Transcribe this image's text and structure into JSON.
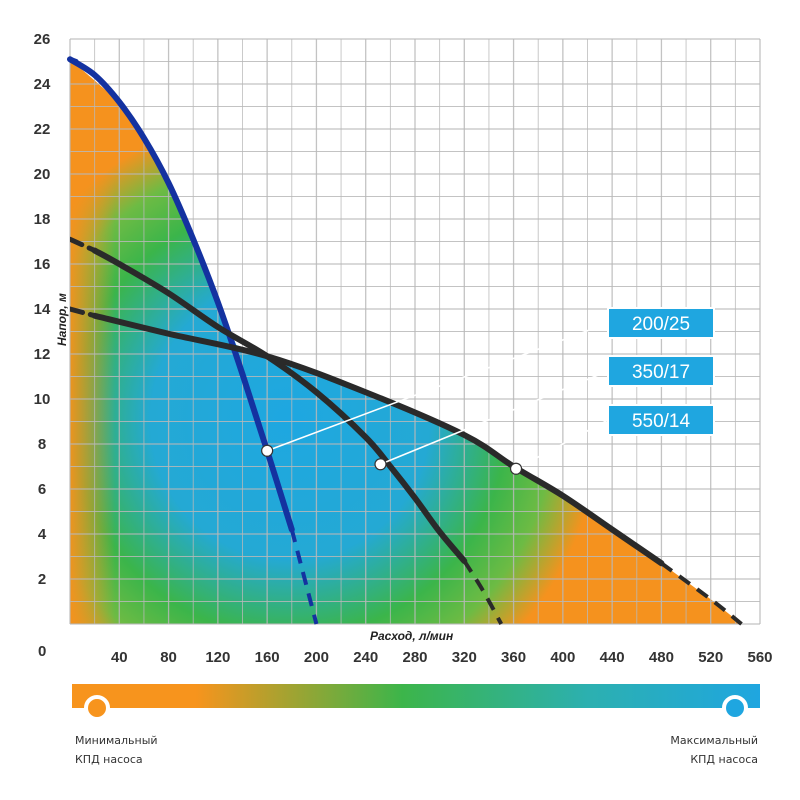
{
  "chart_data": {
    "type": "line",
    "xlabel": "Расход, л/мин",
    "ylabel": "Напор, м",
    "xlim": [
      0,
      560
    ],
    "ylim": [
      0,
      26
    ],
    "x_ticks": [
      40,
      80,
      120,
      160,
      200,
      240,
      280,
      320,
      360,
      400,
      440,
      480,
      520,
      560
    ],
    "y_ticks": [
      2,
      4,
      6,
      8,
      10,
      12,
      14,
      16,
      18,
      20,
      22,
      24,
      26
    ],
    "origin_label": "0",
    "grid": true,
    "background": "efficiency gradient: orange at axes and outer edge, green in between, blue in the central region",
    "series": [
      {
        "name": "200/25",
        "color": "#1432a0",
        "solid": [
          [
            0,
            25.1
          ],
          [
            20,
            24.4
          ],
          [
            40,
            23.2
          ],
          [
            60,
            21.6
          ],
          [
            80,
            19.6
          ],
          [
            100,
            17.1
          ],
          [
            120,
            14.3
          ],
          [
            140,
            11.1
          ],
          [
            160,
            7.7
          ],
          [
            180,
            4.2
          ]
        ],
        "dashed": [
          [
            0,
            25.1
          ],
          [
            5,
            25.0
          ]
        ],
        "dashed_end": [
          [
            180,
            4.2
          ],
          [
            200,
            0
          ]
        ],
        "marker": [
          160,
          7.7
        ]
      },
      {
        "name": "350/17",
        "color": "#2a2a2a",
        "solid": [
          [
            20,
            16.6
          ],
          [
            40,
            16.0
          ],
          [
            80,
            14.7
          ],
          [
            120,
            13.2
          ],
          [
            160,
            11.9
          ],
          [
            200,
            10.3
          ],
          [
            240,
            8.3
          ],
          [
            260,
            7.0
          ],
          [
            280,
            5.6
          ],
          [
            300,
            4.1
          ],
          [
            320,
            2.8
          ]
        ],
        "dashed": [
          [
            0,
            17.1
          ],
          [
            20,
            16.6
          ]
        ],
        "dashed_end": [
          [
            320,
            2.8
          ],
          [
            335,
            1.5
          ],
          [
            350,
            0
          ]
        ],
        "marker": [
          252,
          7.1
        ]
      },
      {
        "name": "550/14",
        "color": "#2a2a2a",
        "solid": [
          [
            20,
            13.7
          ],
          [
            80,
            12.9
          ],
          [
            160,
            11.9
          ],
          [
            240,
            10.3
          ],
          [
            320,
            8.4
          ],
          [
            360,
            7.0
          ],
          [
            400,
            5.7
          ],
          [
            440,
            4.2
          ],
          [
            480,
            2.7
          ]
        ],
        "dashed": [
          [
            0,
            14.0
          ],
          [
            20,
            13.7
          ]
        ],
        "dashed_end": [
          [
            480,
            2.7
          ],
          [
            520,
            1.1
          ],
          [
            545,
            0
          ]
        ],
        "marker": [
          362,
          6.9
        ]
      }
    ],
    "labels": [
      {
        "text": "200/25",
        "series": "200/25"
      },
      {
        "text": "350/17",
        "series": "350/17"
      },
      {
        "text": "550/14",
        "series": "550/14"
      }
    ],
    "label_color": "#1fa6e0",
    "efficiency_scale": {
      "min_label": [
        "Минимальный",
        "КПД насоса"
      ],
      "max_label": [
        "Максимальный",
        "КПД насоса"
      ],
      "colors": {
        "min": "#f7941d",
        "mid": "#3cb54a",
        "max": "#1fa6e0"
      }
    }
  }
}
